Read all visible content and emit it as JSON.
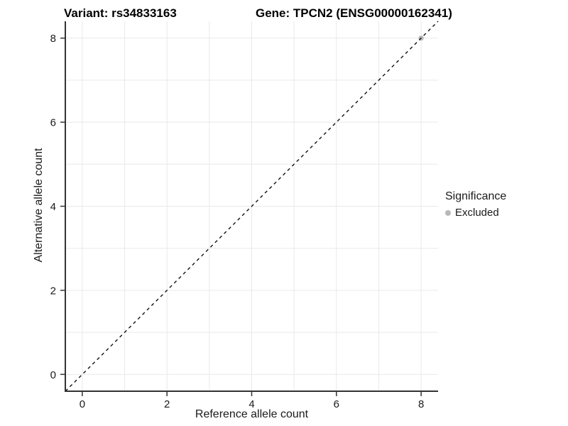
{
  "header": {
    "variant_title": "Variant: rs34833163",
    "gene_title": "Gene: TPCN2 (ENSG00000162341)"
  },
  "legend": {
    "title": "Significance",
    "items": [
      {
        "label": "Excluded",
        "color": "#b8b8b8",
        "marker": "circle"
      }
    ]
  },
  "colors": {
    "background": "#ffffff",
    "grid": "#e9e9e9",
    "axis": "#333333",
    "text": "#1a1a1a",
    "reference_line": "#111111",
    "excluded_point": "#b8b8b8"
  },
  "chart_data": {
    "type": "scatter",
    "title_left": "Variant: rs34833163",
    "title_right": "Gene: TPCN2 (ENSG00000162341)",
    "xlabel": "Reference allele count",
    "ylabel": "Alternative allele count",
    "xlim": [
      -0.4,
      8.4
    ],
    "ylim": [
      -0.4,
      8.4
    ],
    "x_ticks": [
      0,
      2,
      4,
      6,
      8
    ],
    "y_ticks": [
      0,
      2,
      4,
      6,
      8
    ],
    "x_grid": [
      0,
      1,
      2,
      3,
      4,
      5,
      6,
      7,
      8
    ],
    "y_grid": [
      0,
      1,
      2,
      3,
      4,
      5,
      6,
      7,
      8
    ],
    "grid": true,
    "legend_position": "right-middle",
    "series": [
      {
        "name": "Excluded",
        "color": "#b8b8b8",
        "points": [
          [
            8,
            8
          ]
        ]
      }
    ],
    "reference_line": {
      "kind": "identity",
      "equation": "y = x",
      "style": "dashed",
      "color": "#111111",
      "x": [
        -0.4,
        8.4
      ],
      "y": [
        -0.4,
        8.4
      ]
    }
  }
}
